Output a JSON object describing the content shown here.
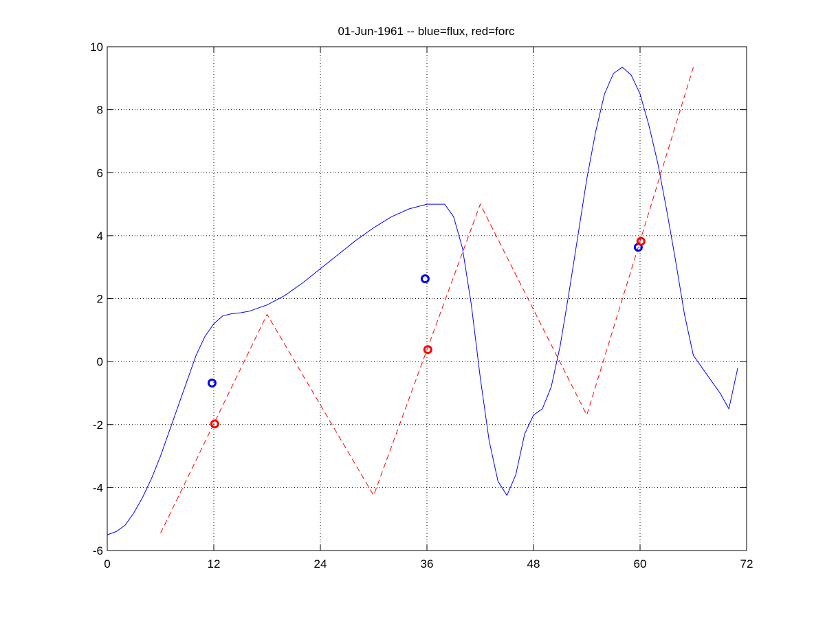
{
  "chart_data": {
    "type": "line",
    "title": "01-Jun-1961 -- blue=flux, red=forc",
    "xlabel": "",
    "ylabel": "",
    "xlim": [
      0,
      72
    ],
    "ylim": [
      -6,
      10
    ],
    "xticks": [
      0,
      12,
      24,
      36,
      48,
      60,
      72
    ],
    "yticks": [
      -6,
      -4,
      -2,
      0,
      2,
      4,
      6,
      8,
      10
    ],
    "grid": true,
    "series": [
      {
        "color": "#0000ff",
        "style": "solid",
        "x": [
          0,
          1,
          2,
          3,
          4,
          5,
          6,
          7,
          8,
          9,
          10,
          11,
          12,
          13,
          14,
          15,
          16,
          17,
          18,
          20,
          22,
          24,
          26,
          28,
          30,
          32,
          34,
          36,
          38,
          39,
          40,
          41,
          42,
          43,
          44,
          45,
          46,
          47,
          48,
          49,
          50,
          51,
          52,
          53,
          54,
          55,
          56,
          57,
          58,
          59,
          60,
          61,
          62,
          63,
          64,
          65,
          66,
          67,
          68,
          69,
          70,
          71
        ],
        "y": [
          -5.5,
          -5.4,
          -5.2,
          -4.8,
          -4.3,
          -3.7,
          -3.0,
          -2.2,
          -1.4,
          -0.6,
          0.2,
          0.8,
          1.2,
          1.45,
          1.52,
          1.55,
          1.6,
          1.7,
          1.8,
          2.1,
          2.5,
          2.95,
          3.4,
          3.85,
          4.25,
          4.6,
          4.85,
          5.0,
          5.0,
          4.6,
          3.6,
          1.8,
          -0.5,
          -2.5,
          -3.8,
          -4.25,
          -3.6,
          -2.3,
          -1.7,
          -1.5,
          -0.8,
          0.5,
          2.2,
          4.0,
          5.8,
          7.3,
          8.5,
          9.15,
          9.35,
          9.1,
          8.5,
          7.5,
          6.3,
          4.8,
          3.2,
          1.5,
          0.2,
          -0.2,
          -0.6,
          -1.0,
          -1.5,
          -0.2
        ]
      },
      {
        "color": "#ff0000",
        "style": "dashed",
        "x": [
          6,
          18,
          30,
          42,
          54,
          66
        ],
        "y": [
          -5.45,
          1.5,
          -4.25,
          5.0,
          -1.7,
          9.35
        ]
      }
    ],
    "markers": [
      {
        "series": "blue",
        "color": "#0000ff",
        "x": 11.8,
        "y": -0.68
      },
      {
        "series": "red",
        "color": "#ff0000",
        "x": 12.1,
        "y": -1.98
      },
      {
        "series": "blue",
        "color": "#0000ff",
        "x": 35.8,
        "y": 2.63
      },
      {
        "series": "red",
        "color": "#ff0000",
        "x": 36.1,
        "y": 0.38
      },
      {
        "series": "blue",
        "color": "#0000ff",
        "x": 59.8,
        "y": 3.63
      },
      {
        "series": "red",
        "color": "#ff0000",
        "x": 60.1,
        "y": 3.82
      }
    ]
  }
}
